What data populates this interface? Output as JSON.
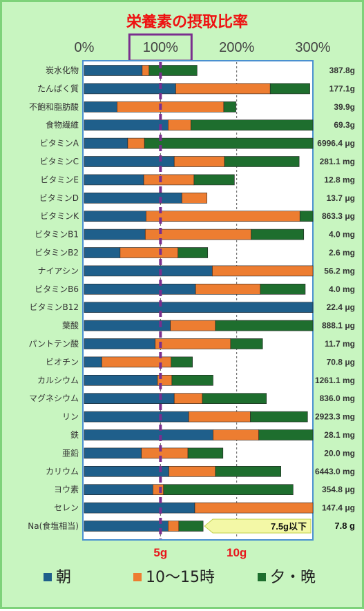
{
  "chart_data": {
    "type": "bar",
    "stacked": true,
    "orientation": "horizontal",
    "title": "栄養素の摂取比率",
    "x_ticks": [
      "0%",
      "100%",
      "200%",
      "300%"
    ],
    "xlim": [
      0,
      300
    ],
    "highlight_tick": "100%",
    "reference_line": 100,
    "grid": true,
    "legend_position": "bottom",
    "series": [
      {
        "name": "朝",
        "color": "#1f5f8b"
      },
      {
        "name": "10～15時",
        "color": "#ed7d31"
      },
      {
        "name": "夕・晩",
        "color": "#1e6e2e"
      }
    ],
    "rows": [
      {
        "name": "炭水化物",
        "amount": "387.8g",
        "values": [
          76,
          9,
          63
        ]
      },
      {
        "name": "たんぱく質",
        "amount": "177.1g",
        "values": [
          120,
          124,
          52
        ]
      },
      {
        "name": "不飽和脂肪酸",
        "amount": "39.9g",
        "values": [
          43,
          140,
          16
        ]
      },
      {
        "name": "食物繊維",
        "amount": "69.3g",
        "values": [
          110,
          30,
          160
        ]
      },
      {
        "name": "ビタミンA",
        "amount": "6996.4 μg",
        "values": [
          57,
          22,
          221
        ]
      },
      {
        "name": "ビタミンC",
        "amount": "281.1 mg",
        "values": [
          118,
          66,
          98
        ]
      },
      {
        "name": "ビタミンE",
        "amount": "12.8 mg",
        "values": [
          78,
          66,
          53
        ]
      },
      {
        "name": "ビタミンD",
        "amount": "13.7 μg",
        "values": [
          128,
          33,
          0
        ]
      },
      {
        "name": "ビタミンK",
        "amount": "863.3 μg",
        "values": [
          81,
          202,
          17
        ]
      },
      {
        "name": "ビタミンB1",
        "amount": "4.0 mg",
        "values": [
          80,
          139,
          69
        ]
      },
      {
        "name": "ビタミンB2",
        "amount": "2.6 mg",
        "values": [
          47,
          76,
          39
        ]
      },
      {
        "name": "ナイアシン",
        "amount": "56.2 mg",
        "values": [
          168,
          132,
          0
        ]
      },
      {
        "name": "ビタミンB6",
        "amount": "4.0 mg",
        "values": [
          146,
          85,
          59
        ]
      },
      {
        "name": "ビタミンB12",
        "amount": "22.4 μg",
        "values": [
          300,
          0,
          0
        ]
      },
      {
        "name": "葉酸",
        "amount": "888.1 μg",
        "values": [
          113,
          59,
          128
        ]
      },
      {
        "name": "パントテン酸",
        "amount": "11.7 mg",
        "values": [
          93,
          99,
          42
        ]
      },
      {
        "name": "ビオチン",
        "amount": "70.8 μg",
        "values": [
          23,
          91,
          28
        ]
      },
      {
        "name": "カルシウム",
        "amount": "1261.1 mg",
        "values": [
          96,
          19,
          54
        ]
      },
      {
        "name": "マグネシウム",
        "amount": "836.0 mg",
        "values": [
          118,
          37,
          84
        ]
      },
      {
        "name": "リン",
        "amount": "2923.3 mg",
        "values": [
          137,
          81,
          75
        ]
      },
      {
        "name": "鉄",
        "amount": "28.1 mg",
        "values": [
          169,
          60,
          71
        ]
      },
      {
        "name": "亜鉛",
        "amount": "20.0 mg",
        "values": [
          75,
          61,
          46
        ]
      },
      {
        "name": "カリウム",
        "amount": "6443.0 mg",
        "values": [
          111,
          61,
          86
        ]
      },
      {
        "name": "ヨウ素",
        "amount": "354.8 μg",
        "values": [
          90,
          14,
          170
        ]
      },
      {
        "name": "セレン",
        "amount": "147.4 μg",
        "values": [
          145,
          155,
          0
        ]
      },
      {
        "name": "Na(食塩相当)",
        "amount": "7.8 g",
        "values": [
          110,
          14,
          32
        ],
        "limit_label": "7.5g以下"
      }
    ],
    "bottom_ticks": [
      {
        "label": "5g",
        "at": 100
      },
      {
        "label": "10g",
        "at": 200
      }
    ]
  }
}
